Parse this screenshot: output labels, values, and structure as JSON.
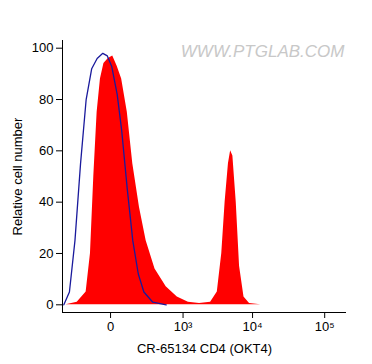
{
  "chart_data": {
    "type": "histogram",
    "annotations": [
      "WWW.PTGLAB.COM"
    ],
    "x_label": "CR-65134 CD4 (OKT4)",
    "y_label": "Relative cell number",
    "log": "x",
    "xlim": [
      -400,
      200000
    ],
    "xticks": [
      0,
      {
        "value": 1000,
        "label": "10³"
      },
      {
        "value": 10000,
        "label": "10⁴"
      },
      {
        "value": 100000,
        "label": "10⁵"
      }
    ],
    "ylim": [
      -3,
      103
    ],
    "yticks": [
      0,
      20,
      40,
      60,
      80,
      100
    ],
    "grid": false,
    "series": [
      {
        "type": "area",
        "color": "#ff0000",
        "x": [
          -345,
          -209,
          -130,
          -99,
          -78,
          -59,
          -42,
          -26,
          -8,
          8,
          26,
          47,
          78,
          114,
          167,
          233,
          345,
          539,
          814,
          1206,
          1764,
          2558,
          3189,
          3692,
          4118,
          4590,
          4930,
          5300,
          5910,
          6580,
          7590,
          9080,
          13000
        ],
        "values": [
          0,
          1,
          5,
          20,
          50,
          75,
          88,
          94,
          96,
          97,
          93,
          88,
          75,
          55,
          38,
          25,
          14,
          7,
          3,
          1,
          0.5,
          1,
          5,
          20,
          40,
          55,
          60,
          58,
          40,
          15,
          3,
          0.5,
          0
        ]
      },
      {
        "type": "line",
        "color": "#1a1a9c",
        "x": [
          -379,
          -299,
          -233,
          -177,
          -130,
          -91,
          -59,
          -31,
          -12,
          4,
          26,
          47,
          78,
          114,
          157,
          209,
          314,
          539
        ],
        "values": [
          0,
          5,
          25,
          55,
          80,
          92,
          96,
          98,
          97,
          93,
          82,
          68,
          45,
          25,
          12,
          5,
          1,
          0
        ]
      }
    ]
  }
}
